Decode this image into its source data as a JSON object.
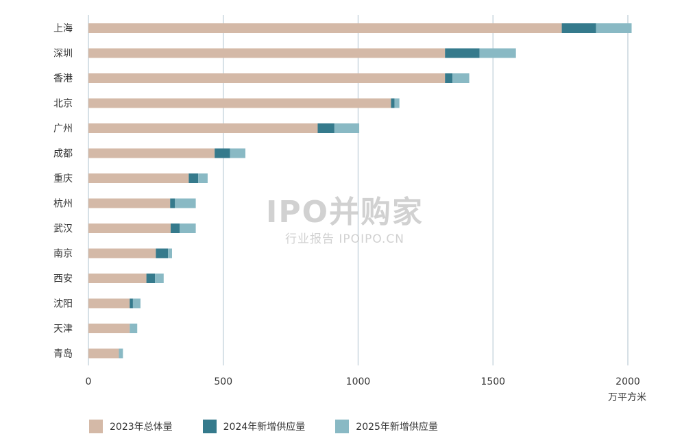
{
  "chart_data": {
    "type": "bar",
    "orientation": "horizontal",
    "stacked": true,
    "categories": [
      "上海",
      "深圳",
      "香港",
      "北京",
      "广州",
      "成都",
      "重庆",
      "杭州",
      "武汉",
      "南京",
      "西安",
      "沈阳",
      "天津",
      "青岛"
    ],
    "series": [
      {
        "name": "2023年总体量",
        "color": "#d4b9a7",
        "values": [
          1755,
          1322,
          1322,
          1122,
          850,
          468,
          372,
          303,
          305,
          250,
          215,
          153,
          153,
          113
        ]
      },
      {
        "name": "2024年新增供应量",
        "color": "#357a8c",
        "values": [
          127,
          128,
          28,
          13,
          62,
          57,
          35,
          18,
          33,
          45,
          32,
          12,
          0,
          0
        ]
      },
      {
        "name": "2025年新增供应量",
        "color": "#89b9c4",
        "values": [
          132,
          135,
          62,
          18,
          92,
          57,
          35,
          77,
          60,
          15,
          32,
          28,
          28,
          15
        ]
      }
    ],
    "x_ticks": [
      "0",
      "500",
      "1000",
      "1500",
      "2000"
    ],
    "xlim": [
      0,
      2000
    ],
    "x_unit": "万平方米",
    "grid": true,
    "legend_position": "bottom"
  },
  "watermark": {
    "main": "IPO并购家",
    "sub": "行业报告 IPOIPO.CN"
  }
}
